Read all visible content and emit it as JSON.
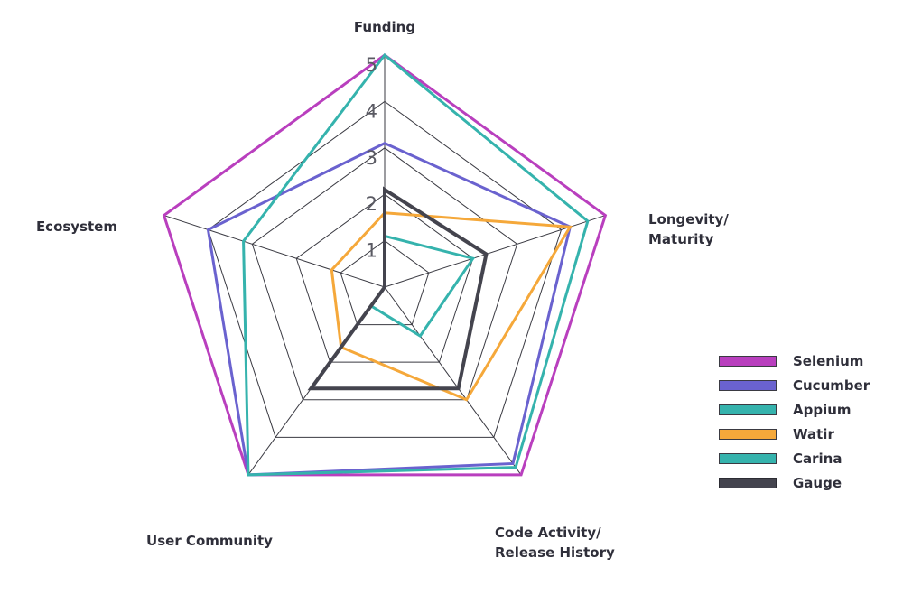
{
  "chart_data": {
    "type": "radar",
    "title": "",
    "axes": [
      "Funding",
      "Longevity/\nMaturity",
      "Code Activity/\nRelease History",
      "User Community",
      "Ecosystem"
    ],
    "range": [
      0,
      5
    ],
    "ticks": [
      "1",
      "2",
      "3",
      "4",
      "5"
    ],
    "grid": true,
    "legend_position": "right",
    "series": [
      {
        "name": "Selenium",
        "color": "#b93fbe",
        "values": [
          5,
          5,
          5,
          5,
          5
        ]
      },
      {
        "name": "Cucumber",
        "color": "#6a62cf",
        "values": [
          3.1,
          4.2,
          4.7,
          5,
          4
        ]
      },
      {
        "name": "Appium",
        "color": "#35b3ad",
        "values": [
          5,
          4.6,
          4.8,
          5,
          3.2
        ]
      },
      {
        "name": "Watir",
        "color": "#f5a83a",
        "values": [
          1.6,
          4.2,
          3,
          1.6,
          1.2
        ]
      },
      {
        "name": "Carina",
        "color": "#35b3ad",
        "values": [
          1.1,
          2,
          1.3,
          0.5,
          0
        ]
      },
      {
        "name": "Gauge",
        "color": "#44444e",
        "values": [
          2.1,
          2.3,
          2.7,
          2.7,
          0
        ]
      }
    ]
  }
}
